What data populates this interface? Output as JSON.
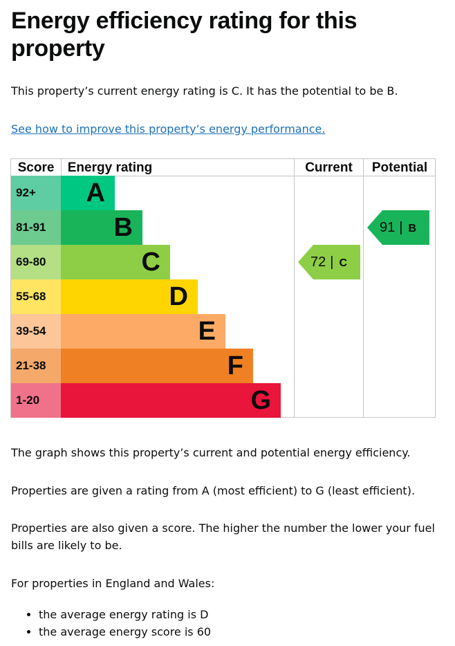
{
  "page": {
    "title": "Energy efficiency rating for this property",
    "intro": "This property’s current energy rating is C. It has the potential to be B.",
    "improve_link": "See how to improve this property’s energy performance.",
    "graph_note": "The graph shows this property’s current and potential energy efficiency.",
    "rating_note": "Properties are given a rating from A (most efficient) to G (least efficient).",
    "score_note": "Properties are also given a score. The higher the number the lower your fuel bills are likely to be.",
    "region_note": "For properties in England and Wales:",
    "bullets": [
      "the average energy rating is D",
      "the average energy score is 60"
    ]
  },
  "chart_data": {
    "type": "table",
    "headers": {
      "score": "Score",
      "rating": "Energy rating",
      "current": "Current",
      "potential": "Potential"
    },
    "bands": [
      {
        "letter": "A",
        "score": "92+",
        "color": "#00c781",
        "score_color": "#5fcda4"
      },
      {
        "letter": "B",
        "score": "81-91",
        "color": "#19b459",
        "score_color": "#6dcb8f"
      },
      {
        "letter": "C",
        "score": "69-80",
        "color": "#8dce46",
        "score_color": "#b4df85"
      },
      {
        "letter": "D",
        "score": "55-68",
        "color": "#ffd500",
        "score_color": "#ffe561"
      },
      {
        "letter": "E",
        "score": "39-54",
        "color": "#fcaa65",
        "score_color": "#fdc698"
      },
      {
        "letter": "F",
        "score": "21-38",
        "color": "#ef8023",
        "score_color": "#f4a86a"
      },
      {
        "letter": "G",
        "score": "1-20",
        "color": "#e9153b",
        "score_color": "#f0728a"
      }
    ],
    "current": {
      "value": "72",
      "letter": "C",
      "color": "#8dce46"
    },
    "potential": {
      "value": "91",
      "letter": "B",
      "color": "#19b459"
    }
  }
}
